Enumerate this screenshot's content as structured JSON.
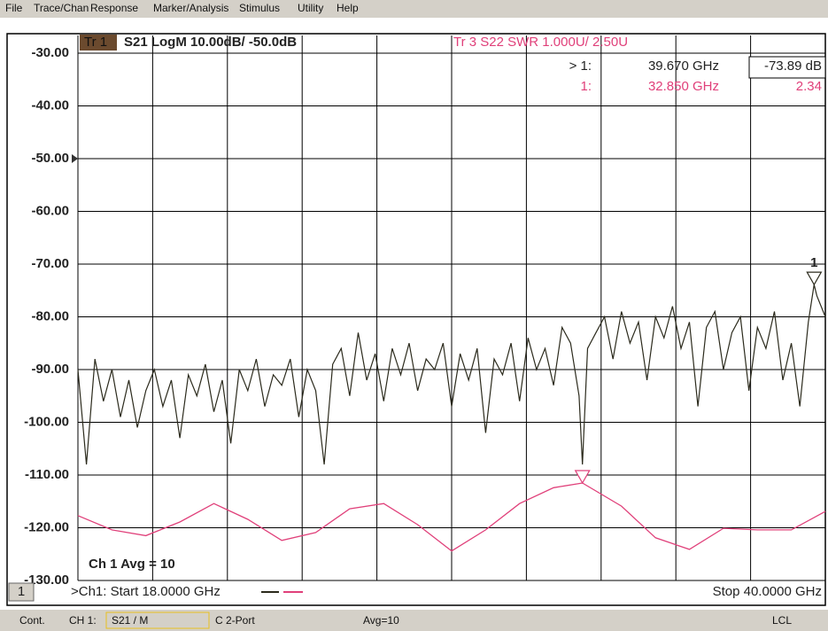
{
  "menu": [
    "File",
    "Trace/Chan",
    "Response",
    "Marker/Analysis",
    "Stimulus",
    "Utility",
    "Help"
  ],
  "chart_data": {
    "type": "line",
    "trace1_tag": "Tr 1",
    "trace1_header": "S21 LogM 10.00dB/ -50.0dB",
    "trace3_header": "Tr 3 S22 SWR 1.000U/ 2.50U",
    "ref_level": -50,
    "xlim": [
      18,
      40
    ],
    "ylim": [
      -130,
      -26.64
    ],
    "yticks": [
      {
        "value": -30,
        "label": "-30.00"
      },
      {
        "value": -40,
        "label": "-40.00"
      },
      {
        "value": -50,
        "label": "-50.00"
      },
      {
        "value": -60,
        "label": "-60.00"
      },
      {
        "value": -70,
        "label": "-70.00"
      },
      {
        "value": -80,
        "label": "-80.00"
      },
      {
        "value": -90,
        "label": "-90.00"
      },
      {
        "value": -100,
        "label": "-100.00"
      },
      {
        "value": -110,
        "label": "-110.00"
      },
      {
        "value": -120,
        "label": "-120.00"
      },
      {
        "value": -130,
        "label": "-130.00"
      }
    ],
    "y2lim": [
      0.49,
      10.83
    ],
    "grid": true,
    "series": [
      {
        "name": "S21",
        "color": "#2b2a1c",
        "x": [
          18,
          18.25,
          18.5,
          18.75,
          19,
          19.25,
          19.5,
          19.75,
          20,
          20.25,
          20.5,
          20.75,
          21,
          21.25,
          21.5,
          21.75,
          22,
          22.25,
          22.5,
          22.75,
          23,
          23.25,
          23.5,
          23.75,
          24,
          24.25,
          24.5,
          24.75,
          25,
          25.25,
          25.5,
          25.75,
          26,
          26.25,
          26.5,
          26.75,
          27,
          27.25,
          27.5,
          27.75,
          28,
          28.25,
          28.5,
          28.75,
          29,
          29.25,
          29.5,
          29.75,
          30,
          30.25,
          30.5,
          30.75,
          31,
          31.25,
          31.5,
          31.75,
          32,
          32.25,
          32.5,
          32.75,
          32.85,
          33,
          33.25,
          33.5,
          33.75,
          34,
          34.25,
          34.5,
          34.75,
          35,
          35.25,
          35.5,
          35.75,
          36,
          36.25,
          36.5,
          36.75,
          37,
          37.25,
          37.5,
          37.75,
          38,
          38.25,
          38.5,
          38.75,
          39,
          39.25,
          39.5,
          39.67,
          39.75,
          40
        ],
        "values": [
          -90,
          -108,
          -88,
          -96,
          -90,
          -99,
          -92,
          -101,
          -94,
          -90,
          -97,
          -92,
          -103,
          -91,
          -95,
          -89,
          -98,
          -92,
          -104,
          -90,
          -94,
          -88,
          -97,
          -91,
          -93,
          -88,
          -99,
          -90,
          -94,
          -108,
          -89,
          -86,
          -95,
          -83,
          -92,
          -87,
          -96,
          -86,
          -91,
          -85,
          -94,
          -88,
          -90,
          -85,
          -97,
          -87,
          -92,
          -86,
          -102,
          -88,
          -91,
          -85,
          -96,
          -84,
          -90,
          -86,
          -93,
          -82,
          -85,
          -95,
          -108,
          -86,
          -83,
          -80,
          -88,
          -79,
          -85,
          -81,
          -92,
          -80,
          -84,
          -78,
          -86,
          -81,
          -97,
          -82,
          -79,
          -90,
          -83,
          -80,
          -94,
          -82,
          -86,
          -79,
          -92,
          -85,
          -97,
          -81,
          -73.89,
          -76,
          -80
        ]
      },
      {
        "name": "S22",
        "color": "#e0407a",
        "axis": "y2",
        "x": [
          18,
          19,
          20,
          21,
          22,
          23,
          24,
          25,
          26,
          27,
          28,
          29,
          30,
          31,
          32,
          32.85,
          34,
          35,
          36,
          37,
          38,
          39,
          40
        ],
        "values": [
          1.72,
          1.45,
          1.34,
          1.6,
          1.95,
          1.65,
          1.25,
          1.4,
          1.85,
          1.95,
          1.55,
          1.05,
          1.45,
          1.95,
          2.25,
          2.34,
          1.9,
          1.3,
          1.08,
          1.48,
          1.45,
          1.45,
          1.8
        ]
      }
    ],
    "markers": [
      {
        "id": "1",
        "prefix": "> 1:",
        "series": 0,
        "x": 39.67,
        "x_label": "39.670 GHz",
        "value": -73.89,
        "value_label": "-73.89 dB"
      },
      {
        "prefix": "1:",
        "series": 1,
        "x": 32.85,
        "x_label": "32.850 GHz",
        "value": 2.34,
        "value_label": "2.34"
      }
    ],
    "avg_label": "Ch 1 Avg = 10",
    "channel_number": "1",
    "start_label": ">Ch1: Start 18.0000 GHz",
    "stop_label": "Stop 40.0000 GHz"
  },
  "status_bar": [
    "Cont.",
    "CH 1:",
    "S21 / M",
    "C 2-Port",
    "Avg=10",
    "LCL"
  ]
}
